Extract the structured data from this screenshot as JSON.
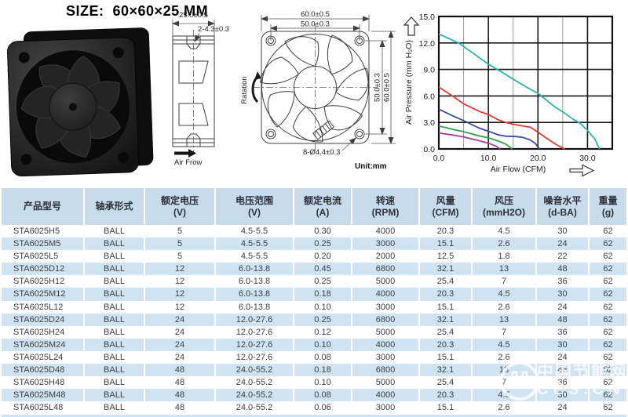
{
  "page_title": "SIZE:  60×60×25 MM",
  "colors": {
    "accent_green": "#00a651",
    "table_header_bg": "#c6dbec",
    "table_row_alt_bg": "#cfe3f3",
    "curve_teal": "#2bb3a5",
    "curve_red": "#e23a2e",
    "curve_navy": "#3b4aa0",
    "curve_green": "#2fa14b",
    "curve_purple": "#9c3f9a"
  },
  "drawings": {
    "side_view": {
      "thickness_dim": "25.0±0.5",
      "notch_dim": "2-4.3±0.3",
      "airflow_label": "Air Frow"
    },
    "front_view": {
      "outer_width_dim": "60.0±0.5",
      "hole_pitch_h_dim": "50.0±0.3",
      "hole_pitch_v_dim": "50.0±0.3",
      "outer_height_dim": "60.0±0.5",
      "hole_note": "8-Ø4.4±0.3",
      "unit_note": "Unit:mm",
      "rotation_label": "Ratation"
    }
  },
  "chart_data": {
    "type": "line",
    "title": "",
    "xlabel": "Air Flow (CFM)",
    "ylabel": "Air Pressure (mm H₂O)",
    "xlim": [
      0,
      35
    ],
    "ylim": [
      0,
      15
    ],
    "xticks": [
      0,
      10,
      20,
      30
    ],
    "xtick_labels": [
      "0.0",
      "10.0",
      "20.0",
      "30.0"
    ],
    "minor_xticks": [
      5,
      15,
      25
    ],
    "yticks": [
      0,
      3,
      6,
      9,
      12,
      15
    ],
    "ytick_labels": [
      "0.0",
      "3.0",
      "6.0",
      "9.0",
      "12.0",
      "15.0"
    ],
    "grid": true,
    "legend": "none",
    "series": [
      {
        "name": "curve-teal",
        "color": "#2bb3a5",
        "points": [
          [
            0,
            13.0
          ],
          [
            4,
            12.0
          ],
          [
            10,
            9.6
          ],
          [
            13,
            8.6
          ],
          [
            15,
            7.9
          ],
          [
            18,
            6.9
          ],
          [
            20,
            6.3
          ],
          [
            22,
            5.4
          ],
          [
            23.5,
            4.7
          ],
          [
            25,
            4.2
          ],
          [
            27,
            3.4
          ],
          [
            28.5,
            2.9
          ],
          [
            30,
            2.1
          ],
          [
            31.5,
            1.1
          ],
          [
            32.4,
            0
          ]
        ]
      },
      {
        "name": "curve-red",
        "color": "#e23a2e",
        "points": [
          [
            0,
            7.0
          ],
          [
            3,
            5.9
          ],
          [
            5,
            5.1
          ],
          [
            8,
            4.3
          ],
          [
            10,
            3.9
          ],
          [
            12,
            3.3
          ],
          [
            13.5,
            3.0
          ],
          [
            15,
            2.8
          ],
          [
            17,
            2.6
          ],
          [
            18.5,
            2.45
          ],
          [
            20,
            1.9
          ],
          [
            21.5,
            1.3
          ],
          [
            23,
            0.75
          ],
          [
            24.3,
            0.3
          ],
          [
            25.4,
            0
          ]
        ]
      },
      {
        "name": "curve-navy",
        "color": "#3b4aa0",
        "points": [
          [
            0,
            4.5
          ],
          [
            3,
            3.7
          ],
          [
            5,
            3.2
          ],
          [
            8,
            2.4
          ],
          [
            10,
            2.0
          ],
          [
            12,
            1.6
          ],
          [
            13.5,
            1.45
          ],
          [
            15.5,
            1.4
          ],
          [
            17,
            1.3
          ],
          [
            18.5,
            1.0
          ],
          [
            19.5,
            0.6
          ],
          [
            20.3,
            0
          ]
        ]
      },
      {
        "name": "curve-green",
        "color": "#2fa14b",
        "points": [
          [
            0,
            2.6
          ],
          [
            3,
            2.2
          ],
          [
            5,
            1.95
          ],
          [
            8,
            1.5
          ],
          [
            10,
            1.25
          ],
          [
            12,
            0.9
          ],
          [
            13.5,
            0.55
          ],
          [
            14.8,
            0
          ]
        ]
      },
      {
        "name": "curve-purple",
        "color": "#9c3f9a",
        "points": [
          [
            0,
            1.8
          ],
          [
            3,
            1.55
          ],
          [
            5,
            1.35
          ],
          [
            8,
            0.95
          ],
          [
            10,
            0.65
          ],
          [
            11.5,
            0.33
          ],
          [
            12.4,
            0
          ]
        ]
      }
    ]
  },
  "table": {
    "headers": [
      {
        "label": "产品型号",
        "unit": ""
      },
      {
        "label": "轴承形式",
        "unit": ""
      },
      {
        "label": "额定电压",
        "unit": "(V)"
      },
      {
        "label": "电压范围",
        "unit": "(V)"
      },
      {
        "label": "额定电流",
        "unit": "(A)"
      },
      {
        "label": "转速",
        "unit": "(RPM)"
      },
      {
        "label": "风量",
        "unit": "(CFM)"
      },
      {
        "label": "风压",
        "unit": "(mmH2O)"
      },
      {
        "label": "噪音水平",
        "unit": "(d-BA)"
      },
      {
        "label": "重量",
        "unit": "(g)"
      }
    ],
    "rows": [
      [
        "STA6025H5",
        "BALL",
        "5",
        "4.5-5.5",
        "0.30",
        "4000",
        "20.3",
        "4.5",
        "30",
        "62"
      ],
      [
        "STA6025M5",
        "BALL",
        "5",
        "4.5-5.5",
        "0.25",
        "3000",
        "15.1",
        "2.6",
        "24",
        "62"
      ],
      [
        "STA6025L5",
        "BALL",
        "5",
        "4.5-5.5",
        "0.20",
        "2000",
        "12.5",
        "1.8",
        "22",
        "62"
      ],
      [
        "STA6025D12",
        "BALL",
        "12",
        "6.0-13.8",
        "0.45",
        "6800",
        "32.1",
        "13",
        "48",
        "62"
      ],
      [
        "STA6025H12",
        "BALL",
        "12",
        "6.0-13.8",
        "0.25",
        "5000",
        "25.4",
        "7",
        "36",
        "62"
      ],
      [
        "STA6025M12",
        "BALL",
        "12",
        "6.0-13.8",
        "0.18",
        "4000",
        "20.3",
        "4.5",
        "30",
        "62"
      ],
      [
        "STA6025L12",
        "BALL",
        "12",
        "6.0-13.8",
        "0.10",
        "3000",
        "15.1",
        "2.6",
        "24",
        "62"
      ],
      [
        "STA6025D24",
        "BALL",
        "24",
        "12.0-27.6",
        "0.25",
        "6800",
        "32.1",
        "13",
        "48",
        "62"
      ],
      [
        "STA6025H24",
        "BALL",
        "24",
        "12.0-27.6",
        "0.12",
        "5000",
        "25.4",
        "7",
        "36",
        "62"
      ],
      [
        "STA6025M24",
        "BALL",
        "24",
        "12.0-27.6",
        "0.10",
        "4000",
        "20.3",
        "4.5",
        "30",
        "62"
      ],
      [
        "STA6025L24",
        "BALL",
        "24",
        "12.0-27.6",
        "0.08",
        "3000",
        "15.1",
        "2.6",
        "24",
        "62"
      ],
      [
        "STA6025D48",
        "BALL",
        "48",
        "24.0-55.2",
        "0.18",
        "6800",
        "32.1",
        "13",
        "48",
        "62"
      ],
      [
        "STA6025H48",
        "BALL",
        "48",
        "24.0-55.2",
        "0.10",
        "5000",
        "25.4",
        "7",
        "36",
        "62"
      ],
      [
        "STA6025M48",
        "BALL",
        "48",
        "24.0-55.2",
        "0.08",
        "4000",
        "20.3",
        "4.5",
        "30",
        "62"
      ],
      [
        "STA6025L48",
        "BALL",
        "48",
        "24.0-55.2",
        "0.06",
        "3000",
        "15.1",
        "2.6",
        "24",
        "62"
      ]
    ]
  },
  "watermark": {
    "site_name": "中国节能网",
    "site_code": "CES.CN"
  }
}
